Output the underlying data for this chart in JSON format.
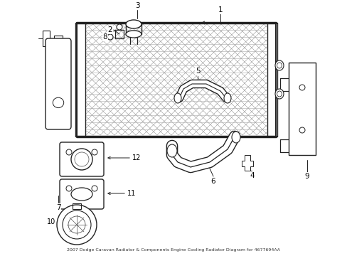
{
  "title": "2007 Dodge Caravan Radiator & Components Engine Cooling Radiator Diagram for 4677694AA",
  "bg_color": "#ffffff",
  "line_color": "#222222",
  "fig_width": 4.89,
  "fig_height": 3.6,
  "dpi": 100
}
